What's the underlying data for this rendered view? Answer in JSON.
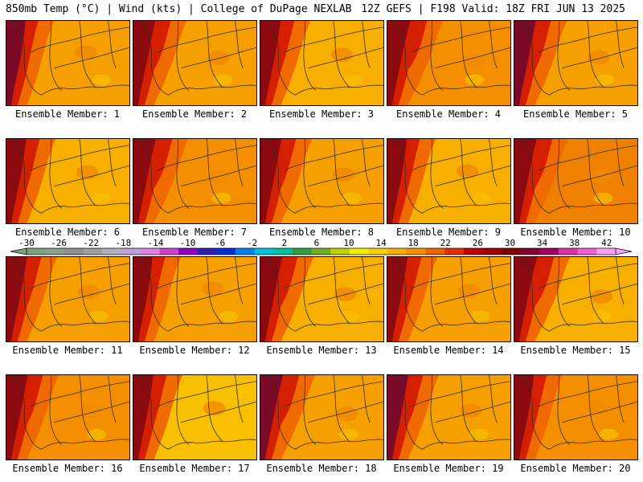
{
  "header": {
    "left": "850mb Temp (°C) | Wind (kts) | College of DuPage NEXLAB",
    "right": "12Z GEFS | F198 Valid: 18Z FRI JUN 13 2025"
  },
  "members": [
    {
      "label": "Ensemble Member: 1",
      "fill": "#f5a000",
      "hot": "#7a0a28"
    },
    {
      "label": "Ensemble Member: 2",
      "fill": "#f5a000",
      "hot": "#8a0a10"
    },
    {
      "label": "Ensemble Member: 3",
      "fill": "#f7b000",
      "hot": "#8a0a10"
    },
    {
      "label": "Ensemble Member: 4",
      "fill": "#f49000",
      "hot": "#8a0a10"
    },
    {
      "label": "Ensemble Member: 5",
      "fill": "#f5a000",
      "hot": "#7a0a28"
    },
    {
      "label": "Ensemble Member: 6",
      "fill": "#f7b000",
      "hot": "#8a0a10"
    },
    {
      "label": "Ensemble Member: 7",
      "fill": "#f49000",
      "hot": "#8a0a10"
    },
    {
      "label": "Ensemble Member: 8",
      "fill": "#f5a000",
      "hot": "#8a0a10"
    },
    {
      "label": "Ensemble Member: 9",
      "fill": "#f7b000",
      "hot": "#8a0a10"
    },
    {
      "label": "Ensemble Member: 10",
      "fill": "#f08000",
      "hot": "#8a0a10"
    },
    {
      "label": "Ensemble Member: 11",
      "fill": "#f5a000",
      "hot": "#8a0a10"
    },
    {
      "label": "Ensemble Member: 12",
      "fill": "#f5a000",
      "hot": "#8a0a10"
    },
    {
      "label": "Ensemble Member: 13",
      "fill": "#f7b000",
      "hot": "#8a0a10"
    },
    {
      "label": "Ensemble Member: 14",
      "fill": "#f5a000",
      "hot": "#8a0a10"
    },
    {
      "label": "Ensemble Member: 15",
      "fill": "#f7b000",
      "hot": "#8a0a10"
    },
    {
      "label": "Ensemble Member: 16",
      "fill": "#f49000",
      "hot": "#8a0a10"
    },
    {
      "label": "Ensemble Member: 17",
      "fill": "#f7c000",
      "hot": "#8a0a10"
    },
    {
      "label": "Ensemble Member: 18",
      "fill": "#f5a000",
      "hot": "#7a0a28"
    },
    {
      "label": "Ensemble Member: 19",
      "fill": "#f5a000",
      "hot": "#7a0a28"
    },
    {
      "label": "Ensemble Member: 20",
      "fill": "#f49000",
      "hot": "#8a0a10"
    }
  ],
  "colorbar": {
    "ticks": [
      "-30",
      "-26",
      "-22",
      "-18",
      "-14",
      "-10",
      "-6",
      "-2",
      "2",
      "6",
      "10",
      "14",
      "18",
      "22",
      "26",
      "30",
      "34",
      "38",
      "42"
    ],
    "colors": [
      "#80a080",
      "#8aa08a",
      "#909090",
      "#a0a0a0",
      "#b0b0c0",
      "#c0a0d8",
      "#e080e0",
      "#d040d0",
      "#9000c0",
      "#3020b0",
      "#0030d0",
      "#0080f0",
      "#00c0e0",
      "#00c0a0",
      "#30a040",
      "#70b020",
      "#c0d000",
      "#f0f000",
      "#f8d000",
      "#f8b000",
      "#f89000",
      "#f06000",
      "#e03000",
      "#c00000",
      "#a00000",
      "#800000",
      "#800030",
      "#a00060",
      "#e030a0",
      "#f060d0",
      "#f8a0f0"
    ]
  }
}
